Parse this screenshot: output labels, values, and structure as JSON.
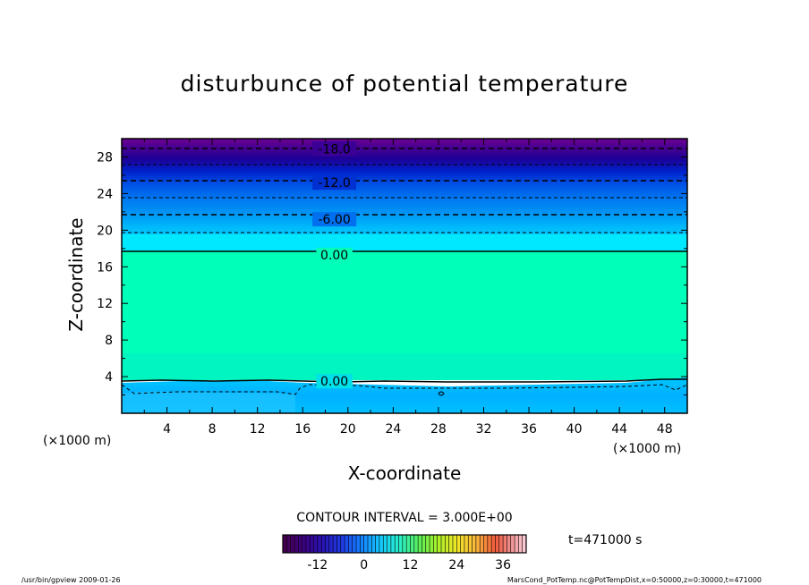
{
  "chart_data": {
    "type": "contour",
    "title": "disturbunce of potential temperature",
    "xlabel": "X-coordinate",
    "ylabel": "Z-coordinate",
    "x_unit": "(×1000 m)",
    "y_unit": "(×1000 m)",
    "xlim": [
      0,
      50
    ],
    "ylim": [
      0,
      30
    ],
    "xticks": [
      "4",
      "8",
      "12",
      "16",
      "20",
      "24",
      "28",
      "32",
      "36",
      "40",
      "44",
      "48"
    ],
    "yticks": [
      "4",
      "8",
      "12",
      "16",
      "20",
      "24",
      "28"
    ],
    "contour_interval_text": "CONTOUR INTERVAL = 3.000E+00",
    "contour_labels": [
      {
        "text": "-18.0",
        "z": 28.9,
        "x": 18.8
      },
      {
        "text": "-12.0",
        "z": 25.2,
        "x": 18.8
      },
      {
        "text": "-6.00",
        "z": 21.2,
        "x": 18.8
      },
      {
        "text": "0.00",
        "z": 17.3,
        "x": 18.8
      },
      {
        "text": "0.00",
        "z": 3.5,
        "x": 18.8
      }
    ],
    "colorbar": {
      "ticks": [
        "-12",
        "0",
        "12",
        "24",
        "36"
      ],
      "range": [
        -21,
        42
      ]
    },
    "time_label": "t=471000 s"
  },
  "footer": {
    "left": "/usr/bin/gpview   2009-01-26",
    "right": "MarsCond_PotTemp.nc@PotTempDist,x=0:50000,z=0:30000,t=471000"
  },
  "colors": {
    "top_purple": "#7a00a0",
    "cyan_band": "#00e6ff",
    "mint_region": "#00ffb8",
    "lower_blue": "#00b4ff"
  }
}
